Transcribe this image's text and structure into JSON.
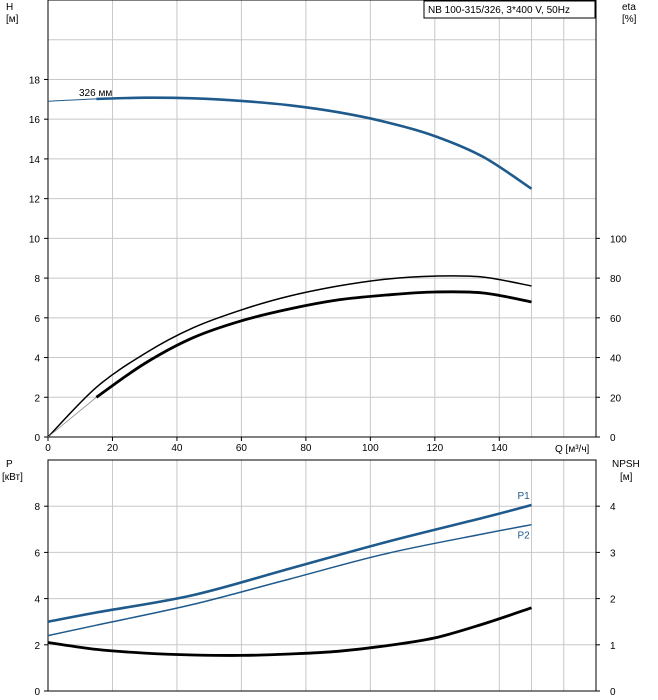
{
  "chart_data": [
    {
      "type": "line",
      "title": "NB 100-315/326, 3*400 V, 50Hz",
      "x_axis": {
        "label": "Q [м³/ч]",
        "range": [
          0,
          170
        ],
        "ticks": [
          0,
          20,
          40,
          60,
          80,
          100,
          120,
          140
        ]
      },
      "y_axis_left": {
        "label_top": "H",
        "label_unit": "[м]",
        "range": [
          0,
          22
        ],
        "ticks": [
          0,
          2,
          4,
          6,
          8,
          10,
          12,
          14,
          16,
          18
        ]
      },
      "y_axis_right": {
        "label_top": "eta",
        "label_unit": "[%]",
        "range": [
          0,
          220
        ],
        "ticks": [
          0,
          20,
          40,
          60,
          80,
          100
        ]
      },
      "annotation": "326 мм",
      "series": [
        {
          "name": "H",
          "axis": "left",
          "color": "#1f5a8c",
          "x": [
            0,
            15,
            30,
            45,
            60,
            75,
            90,
            105,
            120,
            135,
            150
          ],
          "y": [
            16.9,
            17.02,
            17.08,
            17.05,
            16.92,
            16.7,
            16.35,
            15.85,
            15.15,
            14.1,
            12.5
          ]
        },
        {
          "name": "eta",
          "axis": "right",
          "color": "#000000",
          "x": [
            0,
            15,
            30,
            45,
            60,
            75,
            90,
            105,
            120,
            135,
            150
          ],
          "y": [
            0,
            25,
            42,
            55,
            64,
            71,
            76,
            79.5,
            81,
            80.5,
            76
          ]
        },
        {
          "name": "eta2",
          "axis": "right",
          "color": "#000000",
          "x": [
            15,
            30,
            45,
            60,
            75,
            90,
            105,
            120,
            135,
            150
          ],
          "y": [
            20,
            37,
            50,
            58.5,
            64.5,
            69,
            71.5,
            73,
            72.5,
            68
          ]
        }
      ]
    },
    {
      "type": "line",
      "x_axis": {
        "range": [
          0,
          170
        ],
        "ticks": [
          0,
          20,
          40,
          60,
          80,
          100,
          120,
          140
        ]
      },
      "y_axis_left": {
        "label_top": "P",
        "label_unit": "[кВт]",
        "range": [
          0,
          10
        ],
        "ticks": [
          0,
          2,
          4,
          6,
          8
        ]
      },
      "y_axis_right": {
        "label_top": "NPSH",
        "label_unit": "[м]",
        "range": [
          0,
          5
        ],
        "ticks": [
          0,
          1,
          2,
          3,
          4
        ]
      },
      "series": [
        {
          "name": "P1",
          "axis": "left",
          "color": "#1f5a8c",
          "x": [
            0,
            15,
            45,
            75,
            105,
            135,
            150
          ],
          "y": [
            3.0,
            3.4,
            4.15,
            5.3,
            6.45,
            7.5,
            8.05
          ]
        },
        {
          "name": "P2",
          "axis": "left",
          "color": "#1f5a8c",
          "x": [
            0,
            15,
            45,
            75,
            105,
            135,
            150
          ],
          "y": [
            2.4,
            2.85,
            3.75,
            4.85,
            5.95,
            6.8,
            7.2
          ]
        },
        {
          "name": "NPSH",
          "axis": "right",
          "color": "#000000",
          "x": [
            0,
            15,
            30,
            45,
            60,
            75,
            90,
            105,
            120,
            135,
            150
          ],
          "y": [
            1.05,
            0.9,
            0.82,
            0.78,
            0.77,
            0.8,
            0.86,
            0.98,
            1.15,
            1.45,
            1.8
          ]
        }
      ]
    }
  ]
}
